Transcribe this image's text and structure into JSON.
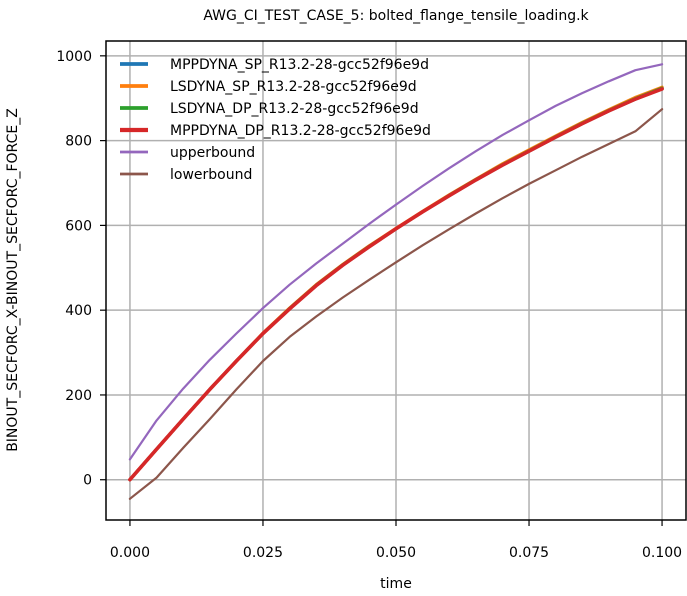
{
  "chart_data": {
    "type": "line",
    "title": "AWG_CI_TEST_CASE_5: bolted_flange_tensile_loading.k",
    "xlabel": "time",
    "ylabel": "BINOUT_SECFORC_X-BINOUT_SECFORC_FORCE_Z",
    "xlim": [
      -0.0045,
      0.1045
    ],
    "ylim": [
      -95,
      1035
    ],
    "xticks": [
      0.0,
      0.025,
      0.05,
      0.075,
      0.1
    ],
    "xtick_labels": [
      "0.000",
      "0.025",
      "0.050",
      "0.075",
      "0.100"
    ],
    "yticks": [
      0,
      200,
      400,
      600,
      800,
      1000
    ],
    "ytick_labels": [
      "0",
      "200",
      "400",
      "600",
      "800",
      "1000"
    ],
    "grid": true,
    "legend_position": "top-left",
    "x": [
      0.0,
      0.005,
      0.01,
      0.015,
      0.02,
      0.025,
      0.03,
      0.035,
      0.04,
      0.045,
      0.05,
      0.055,
      0.06,
      0.065,
      0.07,
      0.075,
      0.08,
      0.085,
      0.09,
      0.095,
      0.1
    ],
    "series": [
      {
        "name": "MPPDYNA_SP_R13.2-28-gcc52f96e9d",
        "color": "#1f77b4",
        "values": [
          0,
          72,
          143,
          213,
          280,
          345,
          403,
          458,
          506,
          550,
          592,
          632,
          670,
          707,
          742,
          775,
          808,
          840,
          870,
          898,
          923
        ]
      },
      {
        "name": "LSDYNA_SP_R13.2-28-gcc52f96e9d",
        "color": "#ff7f0e",
        "values": [
          0,
          72,
          143,
          213,
          280,
          346,
          405,
          460,
          508,
          552,
          593,
          633,
          672,
          709,
          745,
          778,
          811,
          843,
          873,
          902,
          926
        ]
      },
      {
        "name": "LSDYNA_DP_R13.2-28-gcc52f96e9d",
        "color": "#2ca02c",
        "values": [
          0,
          72,
          143,
          213,
          280,
          345,
          404,
          459,
          507,
          551,
          592,
          632,
          671,
          708,
          743,
          776,
          809,
          841,
          871,
          899,
          924
        ]
      },
      {
        "name": "MPPDYNA_DP_R13.2-28-gcc52f96e9d",
        "color": "#d62728",
        "values": [
          0,
          72,
          143,
          213,
          280,
          345,
          403,
          458,
          506,
          550,
          592,
          632,
          670,
          707,
          742,
          775,
          808,
          840,
          870,
          898,
          922
        ]
      },
      {
        "name": "upperbound",
        "color": "#9467bd",
        "values": [
          48,
          140,
          215,
          283,
          345,
          405,
          460,
          510,
          557,
          604,
          649,
          693,
          735,
          775,
          813,
          848,
          882,
          912,
          940,
          966,
          980
        ]
      },
      {
        "name": "lowerbound",
        "color": "#8c564b",
        "values": [
          -45,
          5,
          75,
          143,
          213,
          280,
          337,
          385,
          430,
          472,
          513,
          553,
          591,
          628,
          664,
          698,
          730,
          762,
          792,
          822,
          874
        ]
      }
    ]
  }
}
